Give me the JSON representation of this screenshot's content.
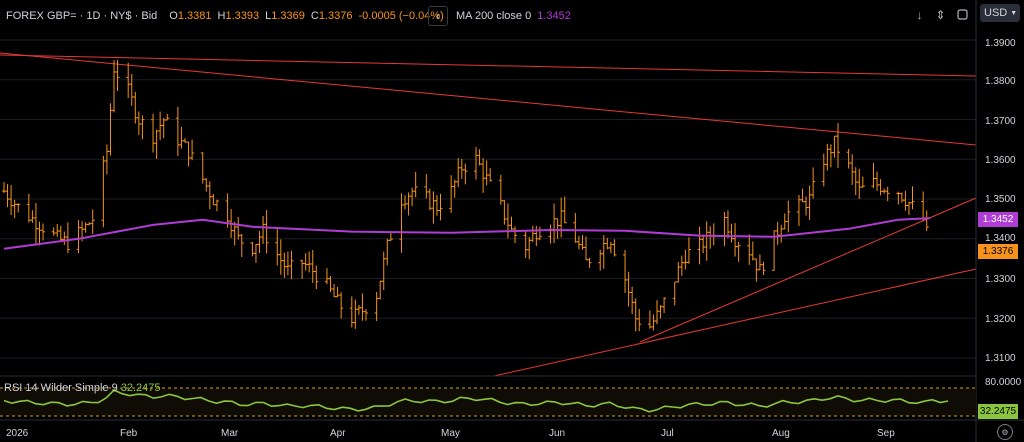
{
  "legend": {
    "symbol": "FOREX GBP= · 1D · NY$ · Bid",
    "open_label": "O",
    "open": "1.3381",
    "high_label": "H",
    "high": "1.3393",
    "low_label": "L",
    "low": "1.3369",
    "close_label": "C",
    "close": "1.3376",
    "change": "-0.0005 (−0.04%)"
  },
  "ma_legend": {
    "collapse_icon": "chevron-left-icon",
    "label": "MA 200 close 0",
    "value": "1.3452",
    "color": "#b03cd6"
  },
  "toolbar": {
    "icons": [
      "arrow-down-icon",
      "arrows-up-down-icon",
      "fullscreen-icon"
    ],
    "currency": "USD"
  },
  "price_axis": {
    "ticks": [
      "1.3900",
      "1.3800",
      "1.3700",
      "1.3600",
      "1.3500",
      "1.3400",
      "1.3300",
      "1.3200",
      "1.3100"
    ],
    "ma_tag": "1.3452",
    "last_tag": "1.3376"
  },
  "rsi": {
    "label": "RSI 14 Wilder Simple 9",
    "value": "32.2475",
    "top_tick": "80.0000",
    "value_tag": "32.2475",
    "color": "#8bc53f",
    "band_color": "#c9a227"
  },
  "time_axis": {
    "labels": [
      "2026",
      "Feb",
      "Mar",
      "Apr",
      "May",
      "Jun",
      "Jul",
      "Aug",
      "Sep"
    ]
  },
  "colors": {
    "bars": "#f7931a",
    "trendlines": "#e53935",
    "background": "#000000",
    "grid": "#1c1e24"
  },
  "chart_data": {
    "type": "ohlc",
    "title": "FOREX GBP= 1D NY$ Bid",
    "y_range": [
      1.307,
      1.3925
    ],
    "x_range": [
      "2025-12-29",
      "2026-09-21"
    ],
    "series": [
      {
        "name": "GBP=",
        "points": [
          [
            "2025-12-29",
            1.352
          ],
          [
            "2026-01-02",
            1.348
          ],
          [
            "2026-01-06",
            1.345
          ],
          [
            "2026-01-09",
            1.343
          ],
          [
            "2026-01-13",
            1.34
          ],
          [
            "2026-01-16",
            1.339
          ],
          [
            "2026-01-20",
            1.342
          ],
          [
            "2026-01-23",
            1.345
          ],
          [
            "2026-01-27",
            1.362
          ],
          [
            "2026-01-29",
            1.383
          ],
          [
            "2026-02-02",
            1.377
          ],
          [
            "2026-02-05",
            1.37
          ],
          [
            "2026-02-09",
            1.366
          ],
          [
            "2026-02-12",
            1.37
          ],
          [
            "2026-02-16",
            1.365
          ],
          [
            "2026-02-19",
            1.362
          ],
          [
            "2026-02-23",
            1.355
          ],
          [
            "2026-02-26",
            1.35
          ],
          [
            "2026-03-02",
            1.346
          ],
          [
            "2026-03-05",
            1.34
          ],
          [
            "2026-03-09",
            1.338
          ],
          [
            "2026-03-12",
            1.342
          ],
          [
            "2026-03-16",
            1.336
          ],
          [
            "2026-03-19",
            1.332
          ],
          [
            "2026-03-23",
            1.334
          ],
          [
            "2026-03-26",
            1.332
          ],
          [
            "2026-03-30",
            1.328
          ],
          [
            "2026-04-02",
            1.324
          ],
          [
            "2026-04-06",
            1.32
          ],
          [
            "2026-04-09",
            1.322
          ],
          [
            "2026-04-13",
            1.326
          ],
          [
            "2026-04-16",
            1.338
          ],
          [
            "2026-04-20",
            1.35
          ],
          [
            "2026-04-23",
            1.352
          ],
          [
            "2026-04-27",
            1.35
          ],
          [
            "2026-04-30",
            1.348
          ],
          [
            "2026-05-04",
            1.352
          ],
          [
            "2026-05-07",
            1.358
          ],
          [
            "2026-05-11",
            1.36
          ],
          [
            "2026-05-14",
            1.355
          ],
          [
            "2026-05-18",
            1.348
          ],
          [
            "2026-05-21",
            1.342
          ],
          [
            "2026-05-25",
            1.338
          ],
          [
            "2026-05-28",
            1.342
          ],
          [
            "2026-06-01",
            1.344
          ],
          [
            "2026-06-04",
            1.345
          ],
          [
            "2026-06-08",
            1.34
          ],
          [
            "2026-06-11",
            1.334
          ],
          [
            "2026-06-15",
            1.338
          ],
          [
            "2026-06-18",
            1.34
          ],
          [
            "2026-06-22",
            1.33
          ],
          [
            "2026-06-25",
            1.32
          ],
          [
            "2026-06-29",
            1.318
          ],
          [
            "2026-07-02",
            1.322
          ],
          [
            "2026-07-06",
            1.33
          ],
          [
            "2026-07-09",
            1.336
          ],
          [
            "2026-07-13",
            1.338
          ],
          [
            "2026-07-16",
            1.341
          ],
          [
            "2026-07-20",
            1.345
          ],
          [
            "2026-07-23",
            1.34
          ],
          [
            "2026-07-27",
            1.337
          ],
          [
            "2026-07-30",
            1.332
          ],
          [
            "2026-08-03",
            1.34
          ],
          [
            "2026-08-06",
            1.346
          ],
          [
            "2026-08-10",
            1.348
          ],
          [
            "2026-08-13",
            1.35
          ],
          [
            "2026-08-17",
            1.36
          ],
          [
            "2026-08-20",
            1.364
          ],
          [
            "2026-08-24",
            1.358
          ],
          [
            "2026-08-27",
            1.352
          ],
          [
            "2026-08-31",
            1.354
          ],
          [
            "2026-09-03",
            1.353
          ],
          [
            "2026-09-07",
            1.352
          ],
          [
            "2026-09-10",
            1.349
          ],
          [
            "2026-09-14",
            1.345
          ],
          [
            "2026-09-16",
            1.3376
          ]
        ]
      },
      {
        "name": "MA 200 close 0",
        "points": [
          [
            "2025-12-29",
            1.3375
          ],
          [
            "2026-01-19",
            1.34
          ],
          [
            "2026-02-09",
            1.3435
          ],
          [
            "2026-02-23",
            1.3448
          ],
          [
            "2026-03-09",
            1.343
          ],
          [
            "2026-04-06",
            1.3418
          ],
          [
            "2026-05-04",
            1.3415
          ],
          [
            "2026-06-01",
            1.3422
          ],
          [
            "2026-06-22",
            1.342
          ],
          [
            "2026-07-13",
            1.3408
          ],
          [
            "2026-08-03",
            1.3405
          ],
          [
            "2026-08-24",
            1.3425
          ],
          [
            "2026-09-07",
            1.3448
          ],
          [
            "2026-09-16",
            1.3452
          ]
        ]
      }
    ]
  }
}
